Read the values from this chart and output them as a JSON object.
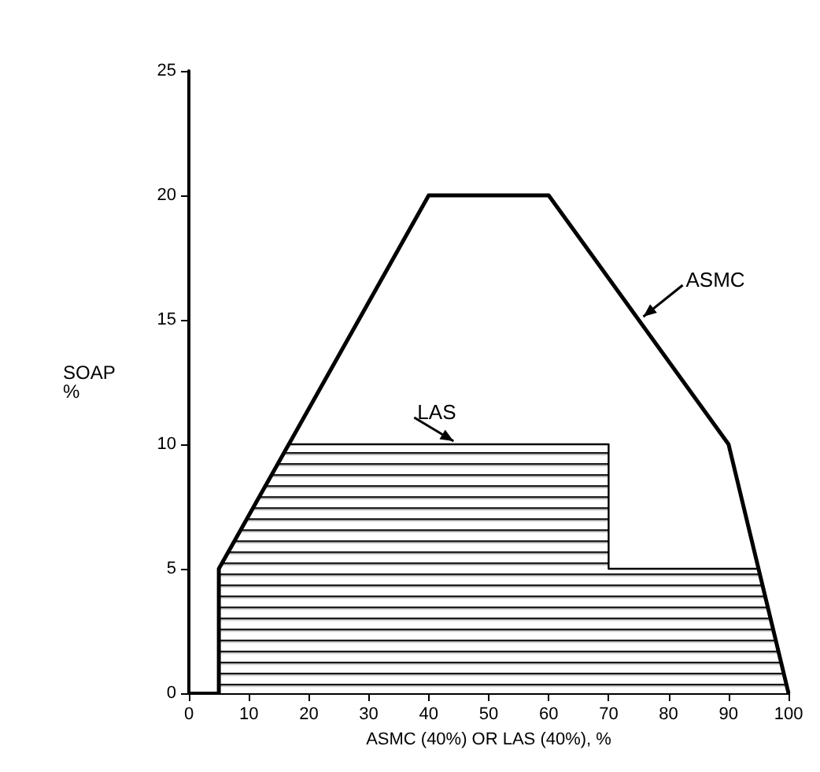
{
  "chart_data": {
    "type": "line",
    "xlabel": "ASMC (40%) OR LAS (40%), %",
    "ylabel": "SOAP\n%",
    "series": [
      {
        "name": "ASMC",
        "type": "line",
        "color": "#000000",
        "x": [
          5,
          5,
          40,
          60,
          90,
          100
        ],
        "values": [
          0,
          5,
          20,
          20,
          10,
          0
        ]
      },
      {
        "name": "LAS",
        "type": "area",
        "color": "#000000",
        "x": [
          5,
          5,
          16.7,
          70,
          70,
          95,
          100
        ],
        "values": [
          0,
          5,
          10,
          10,
          5,
          5,
          0
        ]
      }
    ],
    "xlim": [
      0,
      100
    ],
    "xticks": [
      0,
      10,
      20,
      30,
      40,
      50,
      60,
      70,
      80,
      90,
      100
    ],
    "ylim": [
      0,
      25
    ],
    "yticks": [
      0,
      5,
      10,
      15,
      20,
      25
    ],
    "grid": false,
    "legend": false,
    "marker": "none",
    "line_style": "solid"
  }
}
